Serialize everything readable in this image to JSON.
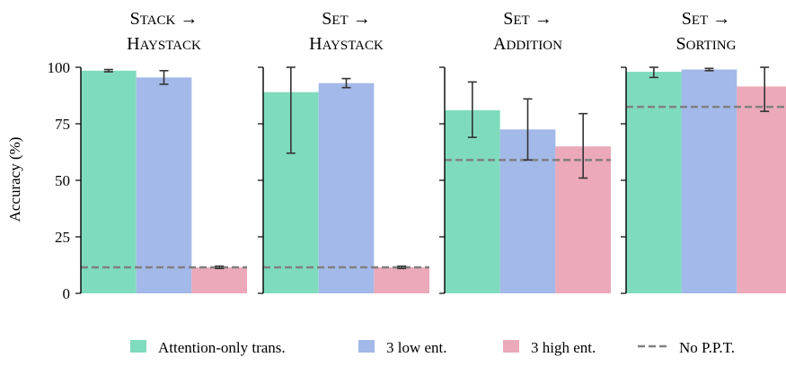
{
  "chart_data": {
    "type": "bar",
    "ylabel": "Accuracy (%)",
    "ylim": [
      0,
      100
    ],
    "yticks": [
      0,
      25,
      50,
      75,
      100
    ],
    "grid": false,
    "legend_placement": "bottom",
    "colors": {
      "Attention-only trans.": "#7fdbbd",
      "3 low ent.": "#a3b9e9",
      "3 high ent.": "#eba9b9",
      "baseline": "#808080"
    },
    "legend": [
      "Attention-only trans.",
      "3 low ent.",
      "3 high ent.",
      "No P.P.T."
    ],
    "panels": [
      {
        "title_line1": "Stack →",
        "title_line2": "Haystack",
        "values": [
          98.5,
          95.5,
          11.5
        ],
        "errors": [
          [
            98,
            99
          ],
          [
            92.5,
            98.5
          ],
          [
            11,
            12
          ]
        ],
        "baseline": 11.5
      },
      {
        "title_line1": "Set →",
        "title_line2": "Haystack",
        "values": [
          89,
          93,
          11.5
        ],
        "errors": [
          [
            62,
            100
          ],
          [
            91,
            95
          ],
          [
            11,
            12
          ]
        ],
        "baseline": 11.5
      },
      {
        "title_line1": "Set →",
        "title_line2": "Addition",
        "values": [
          81,
          72.5,
          65
        ],
        "errors": [
          [
            69,
            93.5
          ],
          [
            59,
            86
          ],
          [
            51,
            79.5
          ]
        ],
        "baseline": 59
      },
      {
        "title_line1": "Set →",
        "title_line2": "Sorting",
        "values": [
          98,
          99,
          91.5
        ],
        "errors": [
          [
            95.5,
            100
          ],
          [
            98.5,
            99.5
          ],
          [
            80.5,
            100
          ]
        ],
        "baseline": 82.5
      }
    ]
  }
}
